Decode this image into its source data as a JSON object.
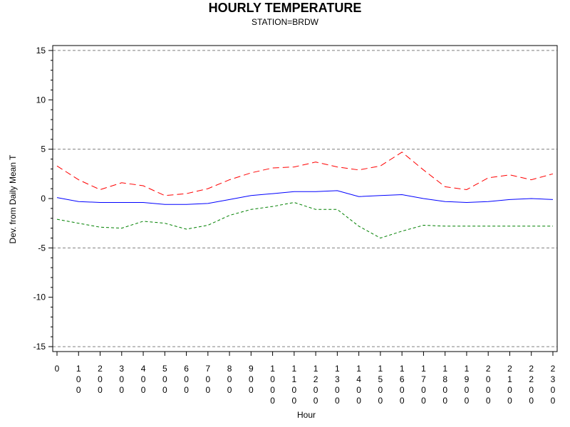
{
  "chart_data": {
    "type": "line",
    "title": "HOURLY TEMPERATURE",
    "subtitle": "STATION=BRDW",
    "xlabel": "Hour",
    "ylabel": "Dev. from Daily Mean T",
    "x": [
      0,
      100,
      200,
      300,
      400,
      500,
      600,
      700,
      800,
      900,
      1000,
      1100,
      1200,
      1300,
      1400,
      1500,
      1600,
      1700,
      1800,
      1900,
      2000,
      2100,
      2200,
      2300
    ],
    "x_tick_labels": [
      "0",
      "100",
      "200",
      "300",
      "400",
      "500",
      "600",
      "700",
      "800",
      "900",
      "1000",
      "1100",
      "1200",
      "1300",
      "1400",
      "1500",
      "1600",
      "1700",
      "1800",
      "1900",
      "2000",
      "2100",
      "2200",
      "2300"
    ],
    "y_ticks": [
      15,
      10,
      5,
      0,
      -5,
      -10,
      -15
    ],
    "y_tick_labels": [
      "15",
      "10",
      "5",
      "0",
      "-5",
      "-10",
      "-15"
    ],
    "ylim": [
      -15.5,
      15.5
    ],
    "reference_lines": [
      15,
      5,
      -5,
      -15
    ],
    "series": [
      {
        "color": "#ff0000",
        "style": "dashed",
        "values": [
          3.3,
          1.9,
          0.9,
          1.6,
          1.3,
          0.3,
          0.5,
          1.0,
          1.9,
          2.6,
          3.1,
          3.2,
          3.7,
          3.2,
          2.9,
          3.3,
          4.7,
          2.9,
          1.2,
          0.9,
          2.1,
          2.4,
          1.9,
          2.5
        ]
      },
      {
        "color": "#0000ff",
        "style": "solid",
        "values": [
          0.1,
          -0.3,
          -0.4,
          -0.4,
          -0.4,
          -0.6,
          -0.6,
          -0.5,
          -0.1,
          0.3,
          0.5,
          0.7,
          0.7,
          0.8,
          0.2,
          0.3,
          0.4,
          0.0,
          -0.3,
          -0.4,
          -0.3,
          -0.1,
          0.0,
          -0.1
        ]
      },
      {
        "color": "#008000",
        "style": "short-dashed",
        "values": [
          -2.1,
          -2.5,
          -2.9,
          -3.0,
          -2.3,
          -2.5,
          -3.1,
          -2.7,
          -1.7,
          -1.1,
          -0.8,
          -0.4,
          -1.1,
          -1.1,
          -2.8,
          -4.0,
          -3.3,
          -2.7,
          -2.8,
          -2.8,
          -2.8,
          -2.8,
          -2.8,
          -2.8
        ]
      }
    ]
  }
}
